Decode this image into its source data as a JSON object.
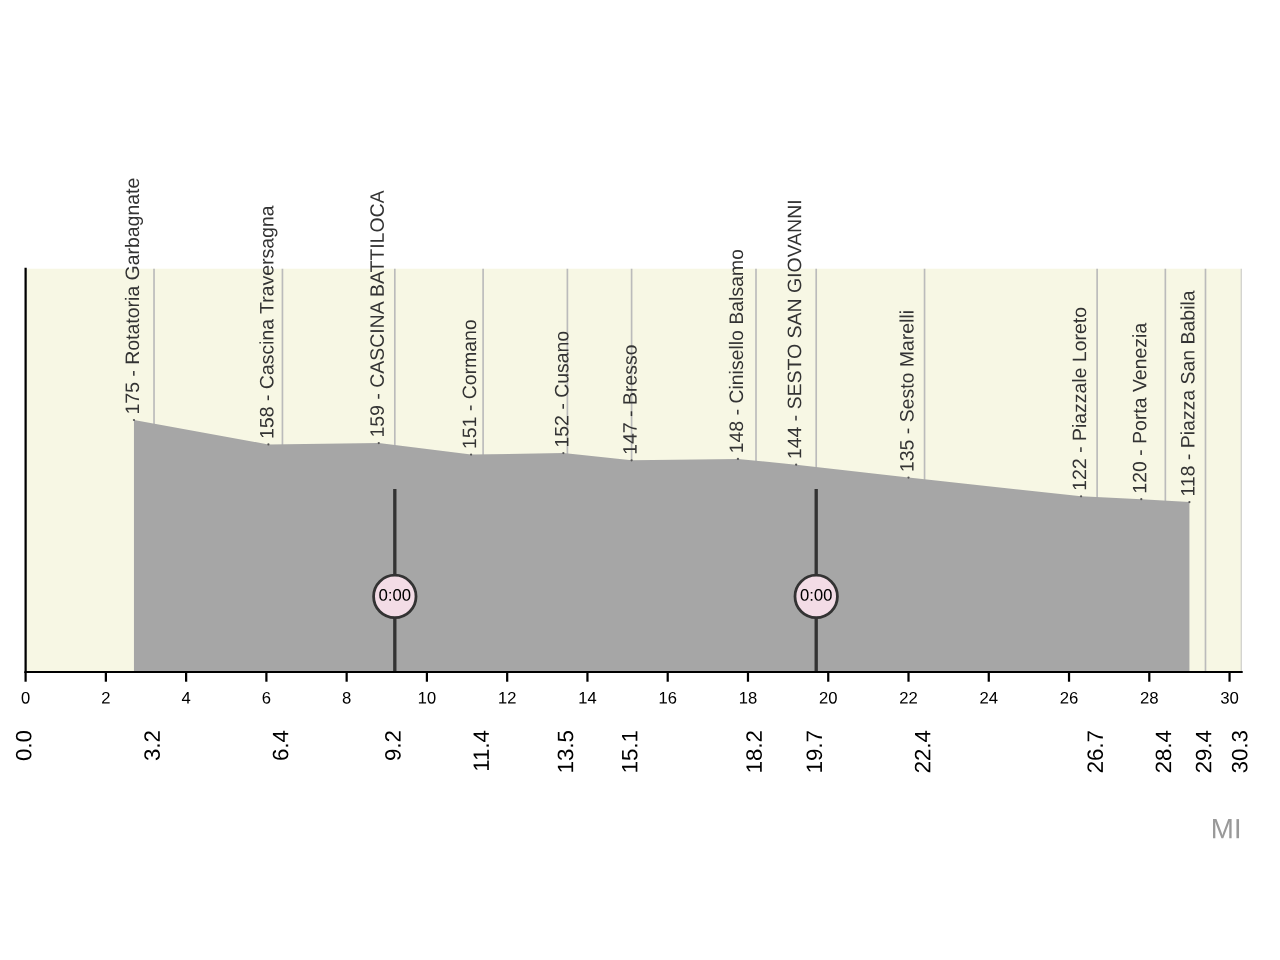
{
  "chart_data": {
    "type": "area",
    "x": [
      2.7,
      6.05,
      8.8,
      11.1,
      13.4,
      15.1,
      17.75,
      19.2,
      22.0,
      26.3,
      27.8,
      29.0
    ],
    "series": [
      {
        "color": "#a6a6a6",
        "values": [
          175,
          158,
          159,
          151,
          152,
          147,
          148,
          144,
          135,
          122,
          120,
          118
        ],
        "value_labels": [
          "175 - Rotatoria Garbagnate",
          "158 - Cascina Traversagna",
          "159 - CASCINA BATTILOCA",
          "151 - Cormano",
          "152 - Cusano",
          "147 - Bresso",
          "148 - Cinisello Balsamo",
          "144 - SESTO SAN GIOVANNI",
          "135 - Sesto Marelli",
          "122 - Piazzale Loreto",
          "120 - Porta Venezia",
          "118 - Piazza San Babila"
        ]
      }
    ],
    "xlim": [
      0,
      30.3
    ],
    "xticks": [
      0,
      2,
      4,
      6,
      8,
      10,
      12,
      14,
      16,
      18,
      20,
      22,
      24,
      26,
      28,
      30
    ],
    "x2lim": [
      0,
      30.3
    ],
    "x2ticks": [
      {
        "value": 0,
        "label": "0.0"
      },
      3.2,
      6.4,
      9.2,
      11.4,
      13.5,
      15.1,
      18.2,
      19.7,
      22.4,
      26.7,
      28.4,
      29.4,
      30.3
    ],
    "xlabel": "MI",
    "annotations": [
      {
        "text": "0:00",
        "x": 9.2
      },
      {
        "text": "0:00",
        "x": 19.7
      }
    ],
    "tick_labels": "x",
    "grid": true
  }
}
